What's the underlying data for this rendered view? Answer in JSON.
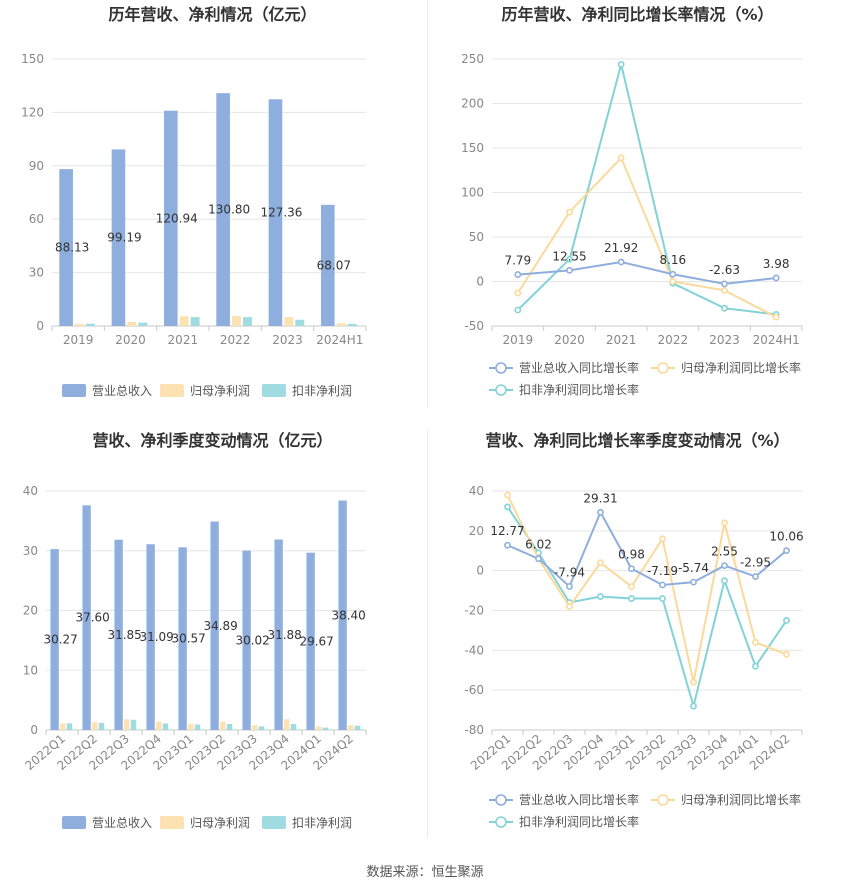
{
  "source": "数据来源：恒生聚源",
  "chart_data": [
    {
      "type": "bar",
      "title": "历年营收、净利情况（亿元）",
      "categories": [
        "2019",
        "2020",
        "2021",
        "2022",
        "2023",
        "2024H1"
      ],
      "series": [
        {
          "name": "营业总收入",
          "values": [
            88.13,
            99.19,
            120.94,
            130.8,
            127.36,
            68.07
          ],
          "color": "#8eaedd",
          "labels": [
            "88.13",
            "99.19",
            "120.94",
            "130.80",
            "127.36",
            "68.07"
          ]
        },
        {
          "name": "归母净利润",
          "values": [
            1.2,
            2.3,
            5.5,
            5.5,
            5.0,
            1.5
          ],
          "color": "#fbe2b0"
        },
        {
          "name": "扣非净利润",
          "values": [
            1.3,
            1.9,
            5.0,
            5.0,
            3.5,
            1.2
          ],
          "color": "#9fdbe0"
        }
      ],
      "ylim": [
        0,
        150
      ],
      "yticks": [
        0,
        30,
        60,
        90,
        120,
        150
      ],
      "grid": true,
      "legend": "bottom"
    },
    {
      "type": "line",
      "title": "历年营收、净利同比增长率情况（%）",
      "categories": [
        "2019",
        "2020",
        "2021",
        "2022",
        "2023",
        "2024H1"
      ],
      "series": [
        {
          "name": "营业总收入同比增长率",
          "values": [
            7.79,
            12.55,
            21.92,
            8.16,
            -2.63,
            3.98
          ],
          "color": "#8eaedd",
          "labels": [
            "7.79",
            "12.55",
            "21.92",
            "8.16",
            "-2.63",
            "3.98"
          ]
        },
        {
          "name": "归母净利润同比增长率",
          "values": [
            -13,
            78,
            139,
            0,
            -10,
            -40
          ],
          "color": "#fbd99a"
        },
        {
          "name": "扣非净利润同比增长率",
          "values": [
            -32,
            25,
            244,
            -2,
            -30,
            -37
          ],
          "color": "#82d3d9"
        }
      ],
      "ylim": [
        -50,
        250
      ],
      "yticks": [
        -50,
        0,
        50,
        100,
        150,
        200,
        250
      ],
      "grid": true,
      "legend": "bottom"
    },
    {
      "type": "bar",
      "title": "营收、净利季度变动情况（亿元）",
      "categories": [
        "2022Q1",
        "2022Q2",
        "2022Q3",
        "2022Q4",
        "2023Q1",
        "2023Q2",
        "2023Q3",
        "2023Q4",
        "2024Q1",
        "2024Q2"
      ],
      "series": [
        {
          "name": "营业总收入",
          "values": [
            30.27,
            37.6,
            31.85,
            31.09,
            30.57,
            34.89,
            30.02,
            31.88,
            29.67,
            38.4
          ],
          "color": "#8eaedd",
          "labels": [
            "30.27",
            "37.60",
            "31.85",
            "31.09",
            "30.57",
            "34.89",
            "30.02",
            "31.88",
            "29.67",
            "38.40"
          ]
        },
        {
          "name": "归母净利润",
          "values": [
            1.1,
            1.3,
            1.8,
            1.4,
            1.0,
            1.4,
            0.8,
            1.8,
            0.6,
            0.8
          ],
          "color": "#fbe2b0"
        },
        {
          "name": "扣非净利润",
          "values": [
            1.1,
            1.2,
            1.7,
            1.1,
            0.9,
            1.0,
            0.6,
            1.0,
            0.4,
            0.7
          ],
          "color": "#9fdbe0"
        }
      ],
      "ylim": [
        0,
        40
      ],
      "yticks": [
        0,
        10,
        20,
        30,
        40
      ],
      "grid": true,
      "legend": "bottom"
    },
    {
      "type": "line",
      "title": "营收、净利同比增长率季度变动情况（%）",
      "categories": [
        "2022Q1",
        "2022Q2",
        "2022Q3",
        "2022Q4",
        "2023Q1",
        "2023Q2",
        "2023Q3",
        "2023Q4",
        "2024Q1",
        "2024Q2"
      ],
      "series": [
        {
          "name": "营业总收入同比增长率",
          "values": [
            12.77,
            6.02,
            -7.94,
            29.31,
            0.98,
            -7.19,
            -5.74,
            2.55,
            -2.95,
            10.06
          ],
          "color": "#8eaedd",
          "labels": [
            "12.77",
            "6.02",
            "-7.94",
            "29.31",
            "0.98",
            "-7.19",
            "-5.74",
            "2.55",
            "-2.95",
            "10.06"
          ]
        },
        {
          "name": "归母净利润同比增长率",
          "values": [
            38,
            6,
            -18,
            4,
            -8,
            16,
            -56,
            24,
            -36,
            -42
          ],
          "color": "#fbd99a"
        },
        {
          "name": "扣非净利润同比增长率",
          "values": [
            32,
            9,
            -16,
            -13,
            -14,
            -14,
            -68,
            -5,
            -48,
            -25
          ],
          "color": "#82d3d9"
        }
      ],
      "ylim": [
        -80,
        40
      ],
      "yticks": [
        -80,
        -60,
        -40,
        -20,
        0,
        20,
        40
      ],
      "grid": true,
      "legend": "bottom"
    }
  ]
}
